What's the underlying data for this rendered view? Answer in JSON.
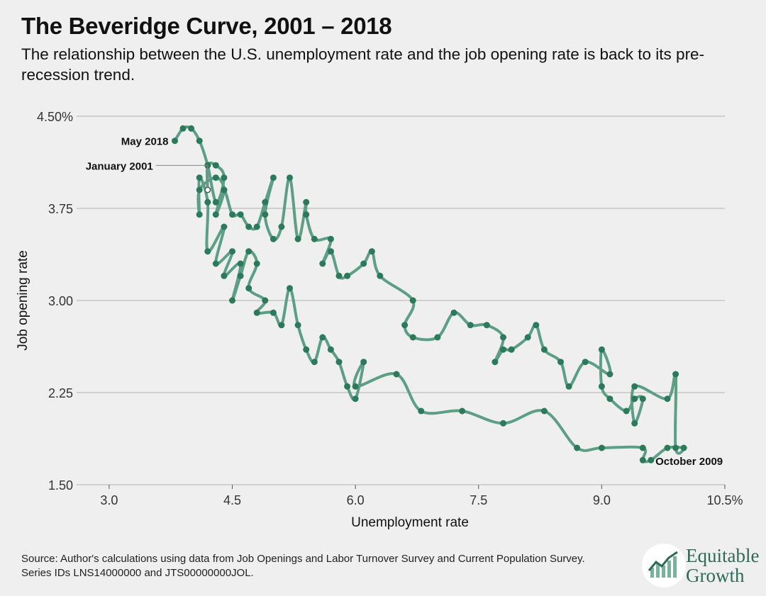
{
  "title": "The Beveridge Curve, 2001 – 2018",
  "subtitle": "The relationship between the U.S. unemployment rate and the job opening rate is back to its pre-recession trend.",
  "source": "Source: Author's calculations using data from Job Openings and Labor Turnover Survey and Current Population Survey. Series IDs LNS14000000 and JTS00000000JOL.",
  "logo": {
    "line1": "Equitable",
    "line2": "Growth"
  },
  "colors": {
    "line": "#5c9e86",
    "point": "#2b7a5a",
    "background": "#efefef",
    "grid": "#b0b0b0"
  },
  "chart_data": {
    "type": "line",
    "xlabel": "Unemployment rate",
    "ylabel": "Job opening rate",
    "xlim": [
      2.5,
      10.5
    ],
    "ylim": [
      1.5,
      4.5
    ],
    "x_ticks": [
      {
        "value": 3.0,
        "label": "3.0"
      },
      {
        "value": 4.5,
        "label": "4.5"
      },
      {
        "value": 6.0,
        "label": "6.0"
      },
      {
        "value": 7.5,
        "label": "7.5"
      },
      {
        "value": 9.0,
        "label": "9.0"
      },
      {
        "value": 10.5,
        "label": "10.5%"
      }
    ],
    "y_ticks": [
      {
        "value": 1.5,
        "label": "1.50"
      },
      {
        "value": 2.25,
        "label": "2.25"
      },
      {
        "value": 3.0,
        "label": "3.00"
      },
      {
        "value": 3.75,
        "label": "3.75"
      },
      {
        "value": 4.5,
        "label": "4.50%"
      }
    ],
    "grid": "horizontal",
    "annotations": [
      {
        "text": "January 2001",
        "x": 4.2,
        "y": 3.9
      },
      {
        "text": "May 2018",
        "x": 3.8,
        "y": 4.3
      },
      {
        "text": "October 2009",
        "x": 10.0,
        "y": 1.8
      }
    ],
    "series": [
      {
        "values": [
          [
            4.2,
            3.9
          ],
          [
            4.2,
            4.1
          ],
          [
            4.3,
            4.1
          ],
          [
            4.4,
            4.0
          ],
          [
            4.3,
            3.7
          ],
          [
            4.4,
            3.9
          ],
          [
            4.3,
            4.0
          ],
          [
            4.1,
            3.9
          ],
          [
            4.1,
            3.7
          ],
          [
            4.1,
            4.0
          ],
          [
            4.2,
            3.8
          ],
          [
            4.2,
            3.4
          ],
          [
            4.4,
            3.6
          ],
          [
            4.3,
            3.3
          ],
          [
            4.5,
            3.4
          ],
          [
            4.4,
            3.2
          ],
          [
            4.6,
            3.3
          ],
          [
            4.5,
            3.0
          ],
          [
            4.6,
            3.2
          ],
          [
            4.7,
            3.4
          ],
          [
            4.8,
            3.3
          ],
          [
            4.7,
            3.1
          ],
          [
            4.9,
            3.0
          ],
          [
            4.8,
            2.9
          ],
          [
            5.0,
            2.9
          ],
          [
            5.1,
            2.8
          ],
          [
            5.2,
            3.1
          ],
          [
            5.3,
            2.8
          ],
          [
            5.4,
            2.6
          ],
          [
            5.5,
            2.5
          ],
          [
            5.6,
            2.7
          ],
          [
            5.7,
            2.6
          ],
          [
            5.8,
            2.5
          ],
          [
            5.9,
            2.3
          ],
          [
            6.0,
            2.2
          ],
          [
            6.1,
            2.5
          ],
          [
            6.0,
            2.3
          ],
          [
            6.5,
            2.4
          ],
          [
            6.8,
            2.1
          ],
          [
            7.3,
            2.1
          ],
          [
            7.8,
            2.0
          ],
          [
            8.3,
            2.1
          ],
          [
            8.7,
            1.8
          ],
          [
            9.0,
            1.8
          ],
          [
            9.5,
            1.8
          ],
          [
            9.5,
            1.7
          ],
          [
            9.6,
            1.7
          ],
          [
            9.8,
            1.8
          ],
          [
            10.0,
            1.8
          ],
          [
            9.9,
            1.8
          ],
          [
            9.9,
            2.4
          ],
          [
            9.8,
            2.2
          ],
          [
            9.4,
            2.3
          ],
          [
            9.4,
            2.0
          ],
          [
            9.5,
            2.2
          ],
          [
            9.4,
            2.2
          ],
          [
            9.3,
            2.1
          ],
          [
            9.1,
            2.2
          ],
          [
            9.0,
            2.3
          ],
          [
            9.0,
            2.6
          ],
          [
            9.1,
            2.4
          ],
          [
            8.8,
            2.5
          ],
          [
            8.6,
            2.3
          ],
          [
            8.5,
            2.5
          ],
          [
            8.3,
            2.6
          ],
          [
            8.2,
            2.8
          ],
          [
            8.1,
            2.7
          ],
          [
            7.9,
            2.6
          ],
          [
            7.8,
            2.6
          ],
          [
            7.7,
            2.5
          ],
          [
            7.8,
            2.7
          ],
          [
            7.6,
            2.8
          ],
          [
            7.4,
            2.8
          ],
          [
            7.2,
            2.9
          ],
          [
            7.0,
            2.7
          ],
          [
            6.7,
            2.7
          ],
          [
            6.6,
            2.8
          ],
          [
            6.7,
            3.0
          ],
          [
            6.3,
            3.2
          ],
          [
            6.2,
            3.4
          ],
          [
            6.1,
            3.3
          ],
          [
            5.9,
            3.2
          ],
          [
            5.8,
            3.2
          ],
          [
            5.7,
            3.4
          ],
          [
            5.6,
            3.3
          ],
          [
            5.7,
            3.5
          ],
          [
            5.5,
            3.5
          ],
          [
            5.4,
            3.7
          ],
          [
            5.4,
            3.8
          ],
          [
            5.3,
            3.5
          ],
          [
            5.2,
            4.0
          ],
          [
            5.1,
            3.6
          ],
          [
            5.0,
            3.5
          ],
          [
            4.9,
            3.7
          ],
          [
            5.0,
            4.0
          ],
          [
            4.9,
            3.8
          ],
          [
            4.8,
            3.6
          ],
          [
            4.7,
            3.6
          ],
          [
            4.6,
            3.7
          ],
          [
            4.5,
            3.7
          ],
          [
            4.4,
            3.9
          ],
          [
            4.3,
            3.8
          ],
          [
            4.2,
            4.1
          ],
          [
            4.1,
            4.3
          ],
          [
            4.0,
            4.4
          ],
          [
            3.9,
            4.4
          ],
          [
            3.8,
            4.3
          ]
        ]
      }
    ]
  }
}
